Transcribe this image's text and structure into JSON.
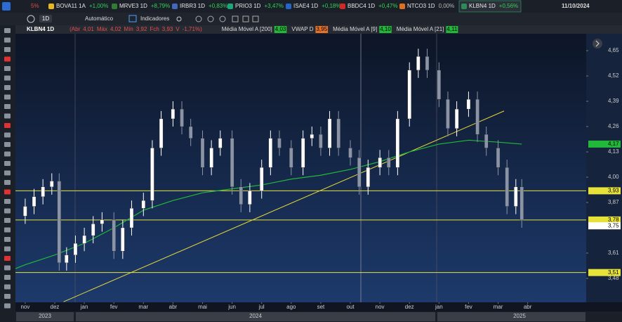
{
  "tabs": {
    "leading_change": "5%",
    "items": [
      {
        "symbol": "BOVA11 1A",
        "change": "+1,00%"
      },
      {
        "symbol": "MRVE3 1D",
        "change": "+8,79%"
      },
      {
        "symbol": "IRBR3 1D",
        "change": "+0,83%"
      },
      {
        "symbol": "PRIO3 1D",
        "change": "+3,47%"
      },
      {
        "symbol": "ISAE4 1D",
        "change": "+0,18%"
      },
      {
        "symbol": "BBDC4 1D",
        "change": "+0,47%"
      },
      {
        "symbol": "NTCO3 1D",
        "change": "0,00%"
      },
      {
        "symbol": "KLBN4 1D",
        "change": "+0,56%"
      }
    ],
    "date": "11/10/2024"
  },
  "toolbar": {
    "interval": "1D",
    "mode": "Automático",
    "indicators": "Indicadores"
  },
  "legend": {
    "symbol": "KLBN4 1D",
    "ohlc": [
      {
        "key": "(Abr",
        "value": "4,01"
      },
      {
        "key": "Máx",
        "value": "4,02"
      },
      {
        "key": "Mín",
        "value": "3,92"
      },
      {
        "key": "Fch",
        "value": "3,93"
      },
      {
        "key": "V",
        "value": "-1,71%)"
      }
    ],
    "indicators": [
      {
        "name": "Média Móvel A [200]",
        "value": "4,03",
        "color": "#22b83a"
      },
      {
        "name": "VWAP D",
        "value": "3,95",
        "color": "#e8742a"
      },
      {
        "name": "Média Móvel A [9]",
        "value": "4,10",
        "color": "#22b83a"
      },
      {
        "name": "Média Móvel A [21]",
        "value": "4,11",
        "color": "#22b83a"
      }
    ]
  },
  "chart_data": {
    "type": "candlestick",
    "up_color": "#ffffff",
    "down_color": "#8a94a6",
    "x": [
      0,
      0.3,
      0.6,
      0.9,
      1.15,
      1.4,
      1.7,
      2,
      2.3,
      2.6,
      3,
      3.3,
      3.6,
      4,
      4.3,
      4.6,
      5,
      5.3,
      5.6,
      6,
      6.3,
      6.6,
      7,
      7.3,
      7.6,
      8,
      8.3,
      8.6,
      9,
      9.4,
      9.7,
      10,
      10.3,
      10.6,
      11,
      11.3,
      11.6,
      12,
      12.3,
      12.6,
      13,
      13.3,
      13.6,
      14,
      14.3,
      14.6,
      15,
      15.3,
      15.6,
      16,
      16.3,
      16.6,
      16.8
    ],
    "open": [
      3.8,
      3.85,
      3.9,
      3.95,
      3.98,
      3.56,
      3.6,
      3.66,
      3.7,
      3.76,
      3.78,
      3.62,
      3.74,
      3.84,
      3.88,
      4.15,
      4.3,
      4.35,
      4.26,
      4.2,
      4.05,
      4.15,
      4.2,
      3.95,
      3.86,
      3.93,
      4.05,
      4.2,
      4.15,
      4.05,
      4.2,
      4.22,
      4.15,
      4.3,
      4.15,
      4.1,
      3.95,
      4.05,
      4.1,
      4.05,
      4.3,
      4.55,
      4.62,
      4.55,
      4.4,
      4.25,
      4.35,
      4.4,
      4.22,
      4.15,
      4.05,
      3.85,
      3.95
    ],
    "high": [
      3.89,
      3.94,
      3.99,
      4.02,
      4.02,
      3.64,
      3.7,
      3.74,
      3.8,
      3.82,
      3.82,
      3.78,
      3.88,
      3.92,
      4.19,
      4.34,
      4.39,
      4.39,
      4.3,
      4.24,
      4.19,
      4.24,
      4.24,
      3.99,
      3.97,
      4.09,
      4.24,
      4.24,
      4.19,
      4.24,
      4.26,
      4.26,
      4.34,
      4.34,
      4.19,
      4.14,
      4.09,
      4.14,
      4.14,
      4.34,
      4.59,
      4.66,
      4.66,
      4.59,
      4.44,
      4.39,
      4.44,
      4.44,
      4.26,
      4.19,
      4.09,
      3.99,
      3.99
    ],
    "low": [
      3.76,
      3.81,
      3.86,
      3.91,
      3.52,
      3.52,
      3.56,
      3.62,
      3.66,
      3.72,
      3.58,
      3.58,
      3.7,
      3.8,
      3.84,
      4.11,
      4.26,
      4.22,
      4.16,
      4.01,
      4.01,
      4.11,
      3.91,
      3.82,
      3.82,
      3.89,
      4.01,
      4.11,
      4.01,
      4.01,
      4.16,
      4.11,
      4.11,
      4.11,
      4.06,
      3.91,
      3.91,
      4.01,
      4.01,
      4.01,
      4.26,
      4.51,
      4.51,
      4.36,
      4.21,
      4.21,
      4.31,
      4.18,
      4.11,
      4.01,
      3.81,
      3.81,
      3.74
    ],
    "close": [
      3.85,
      3.9,
      3.95,
      3.98,
      3.56,
      3.6,
      3.66,
      3.7,
      3.76,
      3.78,
      3.62,
      3.74,
      3.84,
      3.88,
      4.15,
      4.3,
      4.35,
      4.26,
      4.2,
      4.05,
      4.15,
      4.2,
      3.95,
      3.86,
      3.93,
      4.05,
      4.2,
      4.15,
      4.05,
      4.2,
      4.22,
      4.15,
      4.3,
      4.15,
      4.1,
      3.95,
      4.05,
      4.1,
      4.05,
      4.3,
      4.55,
      4.62,
      4.55,
      4.4,
      4.25,
      4.35,
      4.4,
      4.22,
      4.15,
      4.05,
      3.85,
      3.95,
      3.78
    ],
    "moving_average": {
      "color": "#22b83a",
      "x": [
        -0.33,
        0,
        1,
        2,
        3,
        4,
        5,
        6,
        7,
        8,
        9,
        10,
        11,
        11.5,
        12,
        13,
        14,
        15,
        16,
        16.8
      ],
      "values": [
        3.53,
        3.55,
        3.6,
        3.66,
        3.74,
        3.83,
        3.88,
        3.92,
        3.94,
        3.96,
        3.99,
        4.01,
        4.04,
        4.06,
        4.08,
        4.13,
        4.17,
        4.19,
        4.18,
        4.17
      ]
    },
    "trendline": {
      "color": "#e6d83a",
      "x": [
        1.3,
        16.2
      ],
      "values": [
        3.36,
        4.34
      ]
    },
    "levels": [
      {
        "value": 3.93,
        "label": "3,93"
      },
      {
        "value": 3.78,
        "label": "3,78"
      },
      {
        "value": 3.51,
        "label": "3,51"
      }
    ],
    "level_color": "#e6e23a",
    "price_tags": [
      {
        "value": 4.17,
        "label": "4,17",
        "color": "#22b83a"
      },
      {
        "value": 3.75,
        "label": "3,75",
        "color": "#ffffff"
      }
    ],
    "xlim": [
      -0.33,
      18.98
    ],
    "ylim": [
      3.357,
      4.737
    ],
    "xticks": [
      {
        "value": 0,
        "label": "nov"
      },
      {
        "value": 1,
        "label": "dez"
      },
      {
        "value": 2,
        "label": "jan"
      },
      {
        "value": 3,
        "label": "fev"
      },
      {
        "value": 4,
        "label": "mar"
      },
      {
        "value": 5,
        "label": "abr"
      },
      {
        "value": 6,
        "label": "mai"
      },
      {
        "value": 7,
        "label": "jun"
      },
      {
        "value": 8,
        "label": "jul"
      },
      {
        "value": 9,
        "label": "ago"
      },
      {
        "value": 10,
        "label": "set"
      },
      {
        "value": 11,
        "label": "out"
      },
      {
        "value": 12,
        "label": "nov"
      },
      {
        "value": 13,
        "label": "dez"
      },
      {
        "value": 14,
        "label": "jan"
      },
      {
        "value": 15,
        "label": "fev"
      },
      {
        "value": 16,
        "label": "mar"
      },
      {
        "value": 17,
        "label": "abr"
      }
    ],
    "yticks": [
      {
        "value": 3.48,
        "label": "3,48"
      },
      {
        "value": 3.61,
        "label": "3,61"
      },
      {
        "value": 3.87,
        "label": "3,87"
      },
      {
        "value": 4.0,
        "label": "4,00"
      },
      {
        "value": 4.13,
        "label": "4,13"
      },
      {
        "value": 4.26,
        "label": "4,26"
      },
      {
        "value": 4.39,
        "label": "4,39"
      },
      {
        "value": 4.52,
        "label": "4,52"
      },
      {
        "value": 4.65,
        "label": "4,65"
      }
    ],
    "years": [
      "2023",
      "2024",
      "2025"
    ]
  }
}
